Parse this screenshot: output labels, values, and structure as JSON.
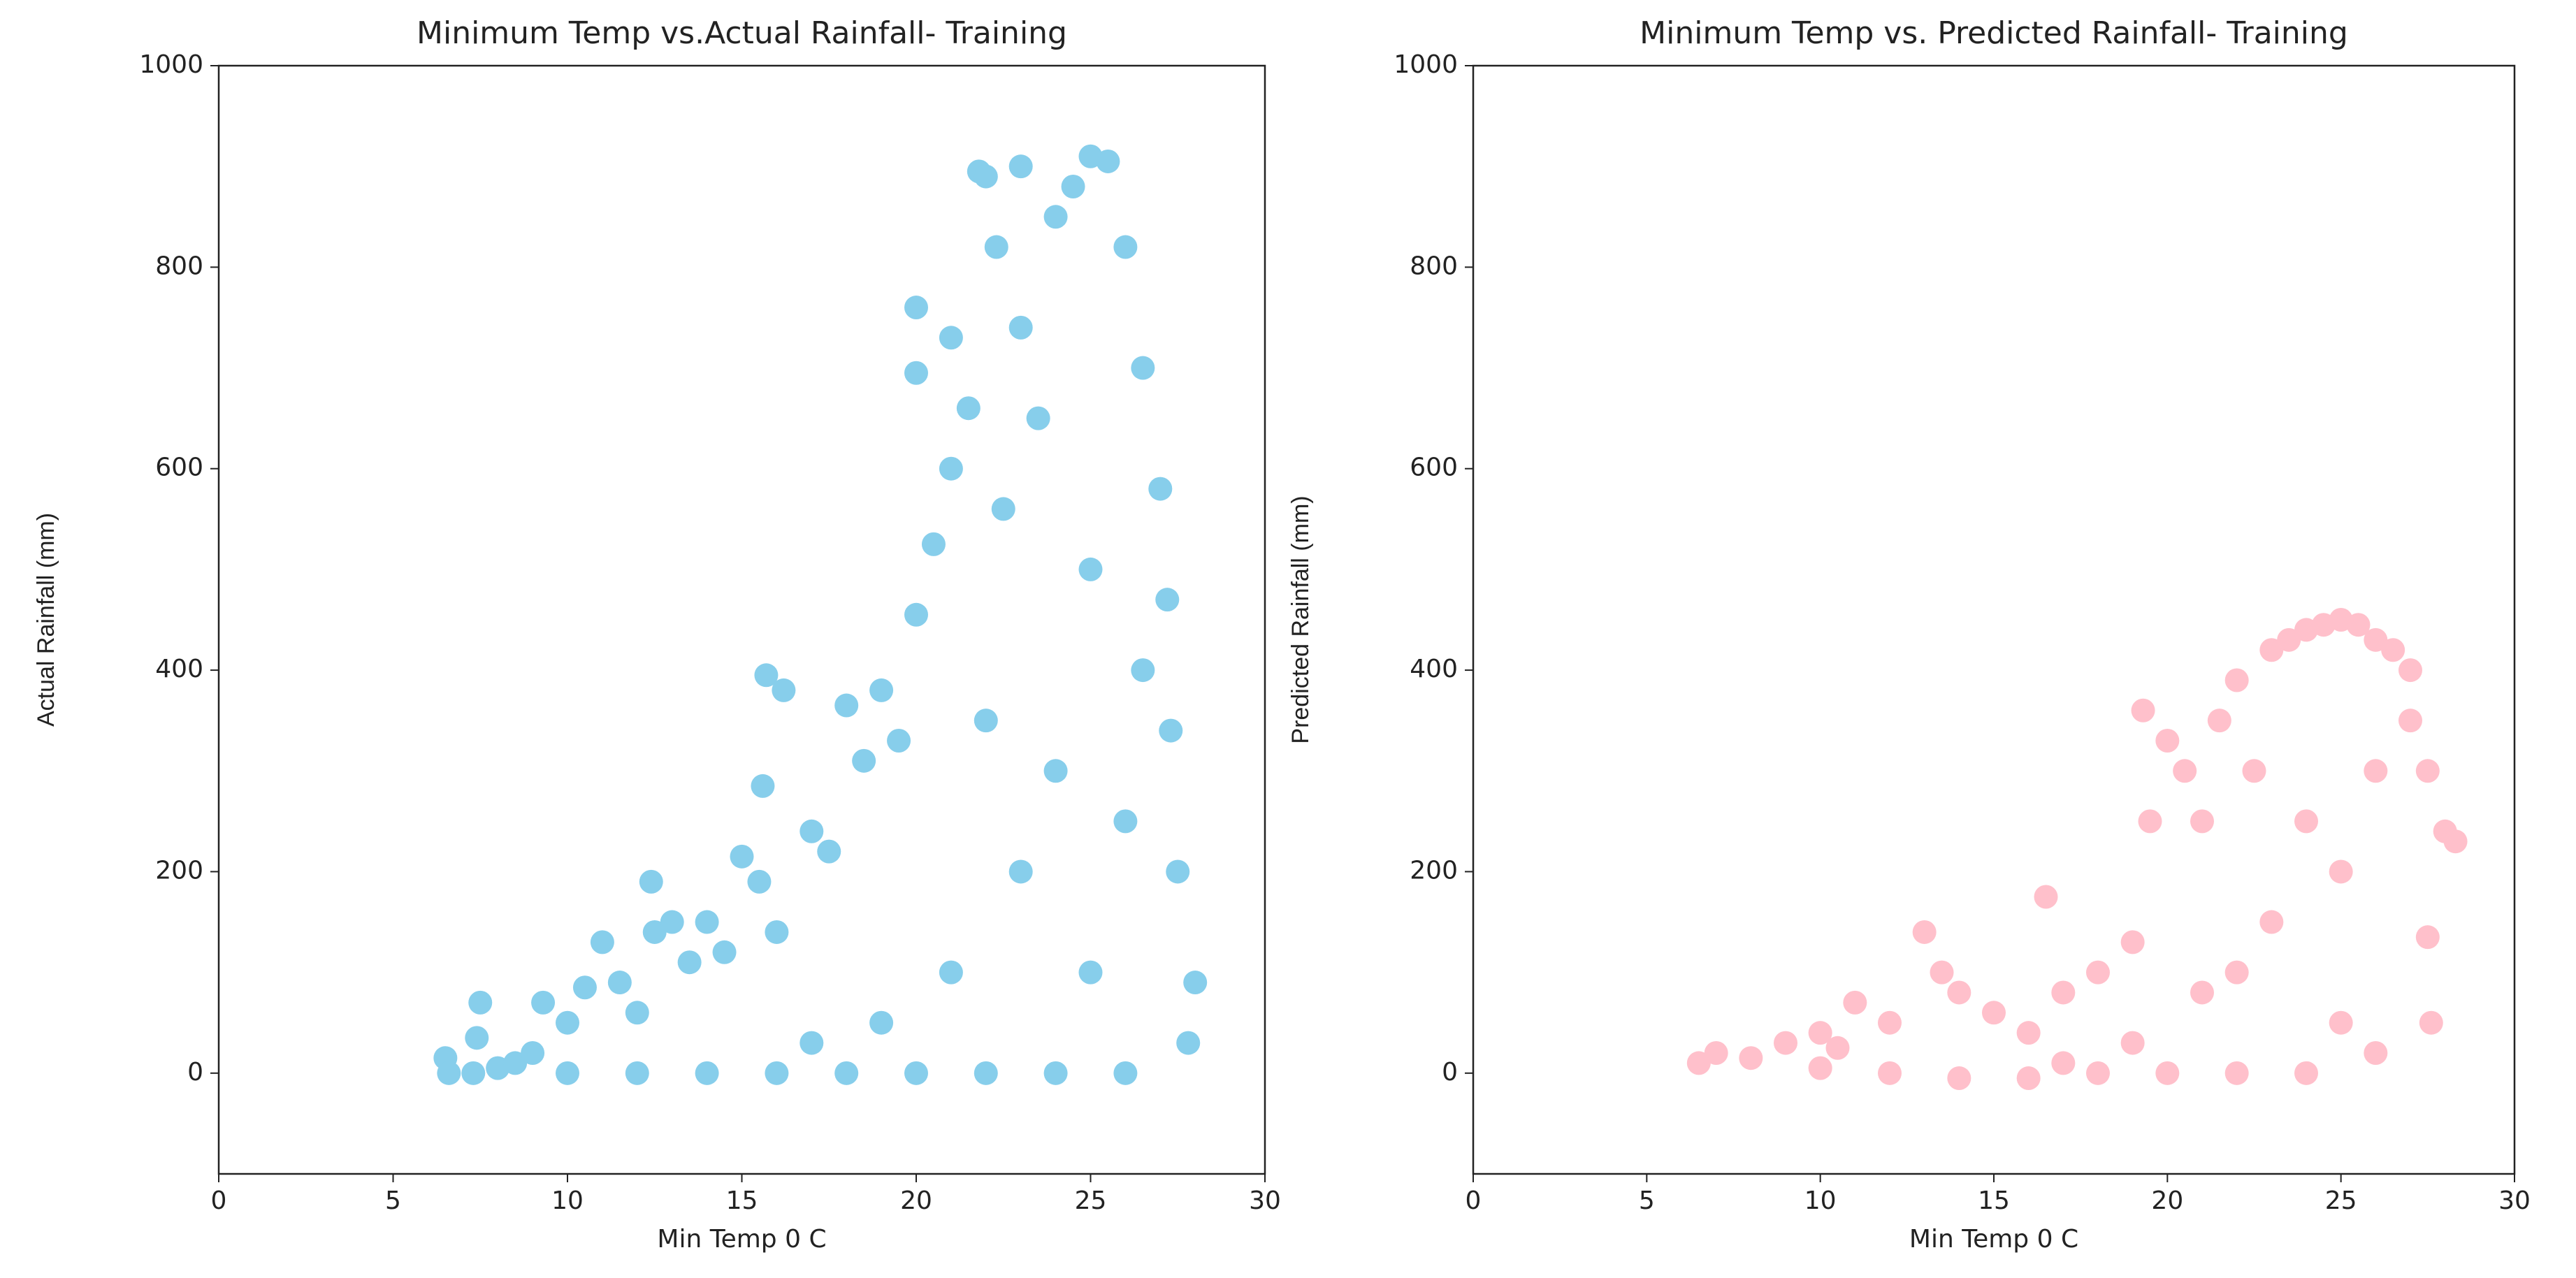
{
  "chart_data": [
    {
      "type": "scatter",
      "title": "Minimum Temp vs.Actual Rainfall- Training",
      "x_label": "Min Temp 0 C",
      "y_label": "Actual Rainfall (mm)",
      "color": "#87ceeb",
      "xlim": [
        0,
        30
      ],
      "ylim": [
        -100,
        1000
      ],
      "xticks": [
        0,
        5,
        10,
        15,
        20,
        25,
        30
      ],
      "yticks": [
        0,
        200,
        400,
        600,
        800,
        1000
      ],
      "x": [
        6.5,
        6.6,
        7.3,
        7.5,
        7.4,
        8,
        8.5,
        9,
        9.3,
        10,
        10.5,
        11,
        11.5,
        12,
        12.4,
        12.5,
        13,
        13.5,
        14,
        14.5,
        15,
        15.5,
        15.6,
        15.7,
        16,
        16.2,
        17,
        17.5,
        18,
        18.5,
        19,
        19.5,
        20,
        20,
        20,
        20.5,
        21,
        21,
        21.5,
        21.8,
        22,
        22.3,
        22.5,
        23,
        23,
        23.5,
        24,
        24.5,
        25,
        25.5,
        26,
        26.5,
        27,
        27.2,
        27.3,
        27.5,
        28,
        27.8,
        26,
        24,
        22,
        20,
        18,
        16,
        14,
        12,
        10,
        24,
        25,
        26,
        23,
        21,
        19,
        17,
        25,
        26.5,
        22
      ],
      "values": [
        15,
        0,
        0,
        70,
        35,
        5,
        10,
        20,
        70,
        50,
        85,
        130,
        90,
        60,
        190,
        140,
        150,
        110,
        150,
        120,
        215,
        190,
        285,
        395,
        140,
        380,
        240,
        220,
        365,
        310,
        380,
        330,
        455,
        695,
        760,
        525,
        600,
        730,
        660,
        895,
        890,
        820,
        560,
        740,
        900,
        650,
        850,
        880,
        910,
        905,
        820,
        700,
        580,
        470,
        340,
        200,
        90,
        30,
        0,
        0,
        0,
        0,
        0,
        0,
        0,
        0,
        0,
        300,
        500,
        250,
        200,
        100,
        50,
        30,
        100,
        400,
        350
      ]
    },
    {
      "type": "scatter",
      "title": "Minimum Temp vs. Predicted Rainfall- Training",
      "x_label": "Min Temp 0 C",
      "y_label": "Predicted Rainfall (mm)",
      "color": "#ffc0cb",
      "xlim": [
        0,
        30
      ],
      "ylim": [
        -100,
        1000
      ],
      "xticks": [
        0,
        5,
        10,
        15,
        20,
        25,
        30
      ],
      "yticks": [
        0,
        200,
        400,
        600,
        800,
        1000
      ],
      "x": [
        6.5,
        7,
        8,
        9,
        10,
        10.5,
        11,
        12,
        13,
        13.5,
        14,
        15,
        16,
        16.5,
        17,
        18,
        19,
        19.3,
        19.5,
        20,
        20.5,
        21,
        21.5,
        22,
        22.5,
        23,
        23.5,
        24,
        24.5,
        25,
        25.5,
        26,
        26.5,
        27,
        27.5,
        28,
        28.3,
        27.5,
        27.6,
        26,
        24,
        22,
        20,
        18,
        16,
        14,
        12,
        10,
        25,
        23,
        21,
        26,
        24,
        27,
        22,
        19,
        17,
        25
      ],
      "values": [
        10,
        20,
        15,
        30,
        40,
        25,
        70,
        50,
        140,
        100,
        80,
        60,
        40,
        175,
        80,
        100,
        130,
        360,
        250,
        330,
        300,
        250,
        350,
        390,
        300,
        420,
        430,
        440,
        445,
        450,
        445,
        430,
        420,
        400,
        300,
        240,
        230,
        135,
        50,
        20,
        0,
        0,
        0,
        0,
        -5,
        -5,
        0,
        5,
        200,
        150,
        80,
        300,
        250,
        350,
        100,
        30,
        10,
        50
      ]
    }
  ]
}
